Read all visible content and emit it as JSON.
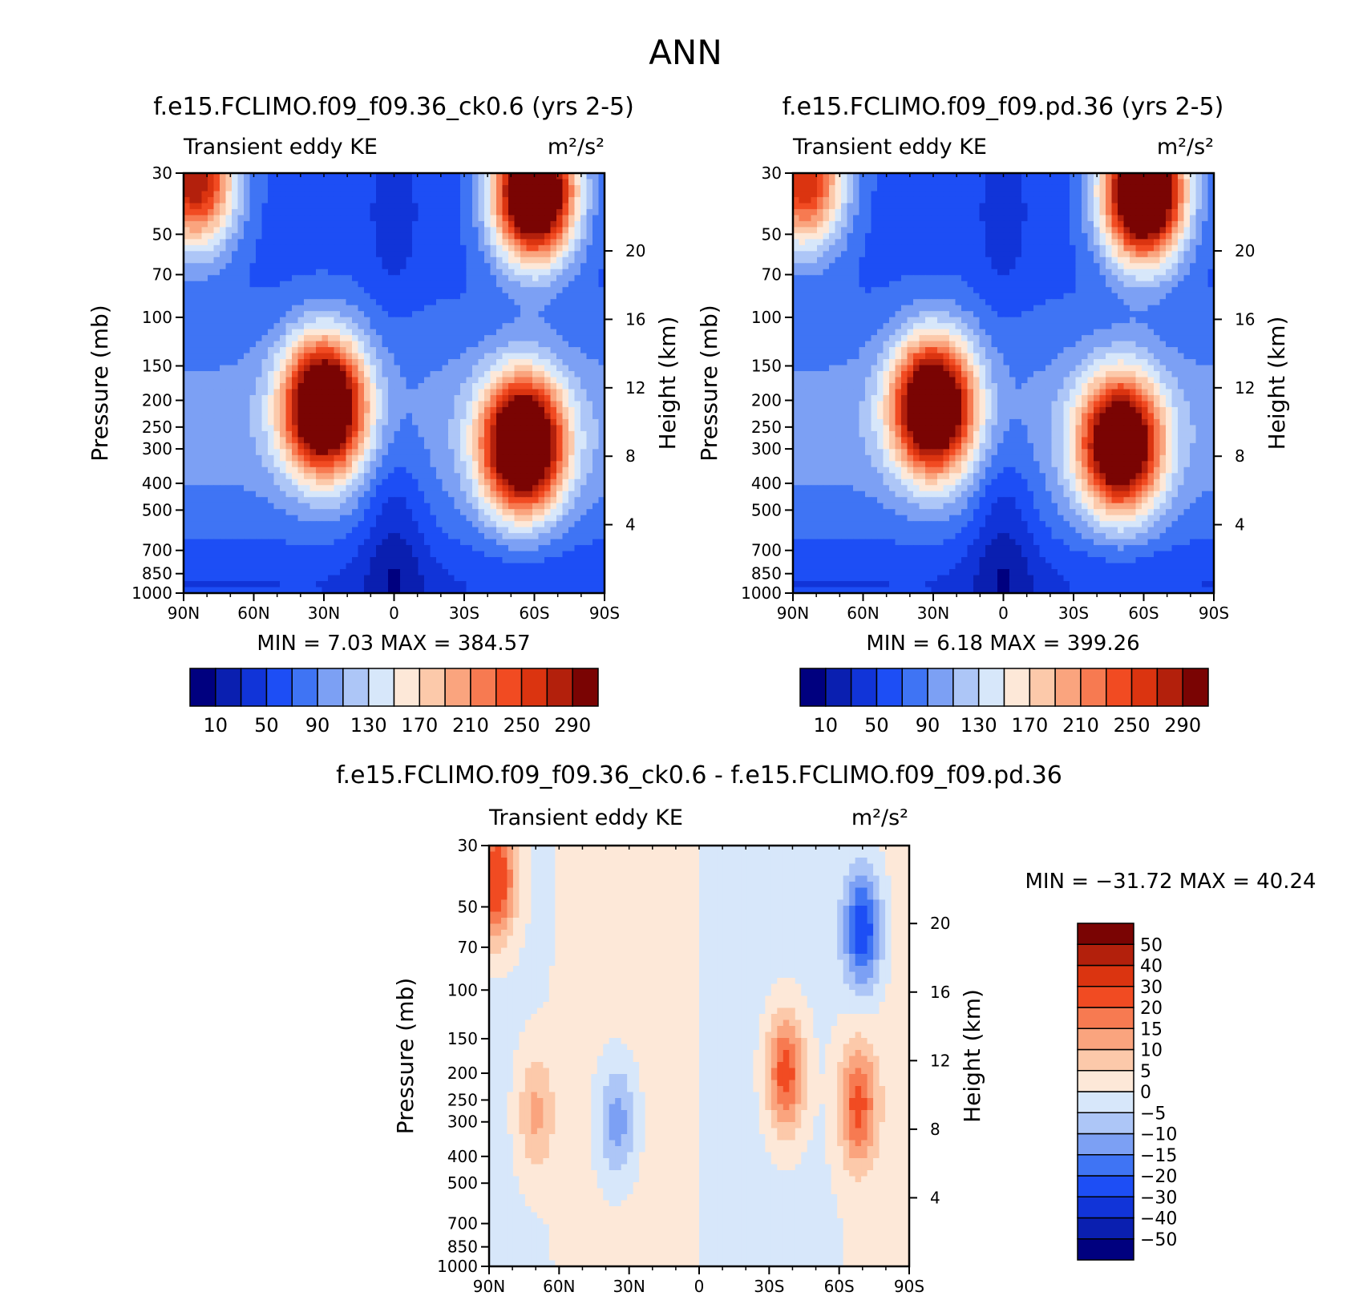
{
  "figure": {
    "title": "ANN"
  },
  "chart_data": [
    {
      "type": "heatmap",
      "title": "f.e15.FCLIMO.f09_f09.36_ck0.6 (yrs 2-5)",
      "subtitle_left": "Transient eddy KE",
      "units": "m²/s²",
      "ylabel": "Pressure (mb)",
      "ylabel_right": "Height (km)",
      "x_ticks": [
        "90N",
        "60N",
        "30N",
        "0",
        "30S",
        "60S",
        "90S"
      ],
      "x_range": [
        90,
        -90
      ],
      "y_ticks": [
        30,
        50,
        70,
        100,
        150,
        200,
        250,
        300,
        400,
        500,
        700,
        850,
        1000
      ],
      "y_range": [
        30,
        1000
      ],
      "y_scale": "log",
      "height_ticks": [
        4,
        8,
        12,
        16,
        20
      ],
      "min_label": "MIN =",
      "min": "7.03",
      "max_label": "MAX =",
      "max": "384.57",
      "colorbar": {
        "levels": [
          10,
          30,
          50,
          70,
          90,
          110,
          130,
          150,
          170,
          190,
          210,
          230,
          250,
          270,
          290
        ],
        "tick_labels": [
          "10",
          "50",
          "90",
          "130",
          "170",
          "210",
          "250",
          "290"
        ],
        "colors": [
          "#00007f",
          "#0a1fb0",
          "#1134d8",
          "#1d4ef5",
          "#3f74f4",
          "#7ca0f4",
          "#adc6f7",
          "#d7e7fa",
          "#fde8d8",
          "#fcc9aa",
          "#faa47e",
          "#f77a51",
          "#f14b22",
          "#db3410",
          "#b3200c",
          "#7a0403"
        ]
      },
      "features": [
        {
          "lat": 30,
          "p": 210,
          "value": 320
        },
        {
          "lat": -55,
          "p": 290,
          "value": 330
        },
        {
          "lat": -60,
          "p": 35,
          "value": 360
        },
        {
          "lat": 85,
          "p": 32,
          "value": 230
        }
      ]
    },
    {
      "type": "heatmap",
      "title": "f.e15.FCLIMO.f09_f09.pd.36 (yrs 2-5)",
      "subtitle_left": "Transient eddy KE",
      "units": "m²/s²",
      "ylabel": "Pressure (mb)",
      "ylabel_right": "Height (km)",
      "x_ticks": [
        "90N",
        "60N",
        "30N",
        "0",
        "30S",
        "60S",
        "90S"
      ],
      "x_range": [
        90,
        -90
      ],
      "y_ticks": [
        30,
        50,
        70,
        100,
        150,
        200,
        250,
        300,
        400,
        500,
        700,
        850,
        1000
      ],
      "y_range": [
        30,
        1000
      ],
      "y_scale": "log",
      "height_ticks": [
        4,
        8,
        12,
        16,
        20
      ],
      "min_label": "MIN =",
      "min": "6.18",
      "max_label": "MAX =",
      "max": "399.26",
      "colorbar": {
        "levels": [
          10,
          30,
          50,
          70,
          90,
          110,
          130,
          150,
          170,
          190,
          210,
          230,
          250,
          270,
          290
        ],
        "tick_labels": [
          "10",
          "50",
          "90",
          "130",
          "170",
          "210",
          "250",
          "290"
        ],
        "colors": [
          "#00007f",
          "#0a1fb0",
          "#1134d8",
          "#1d4ef5",
          "#3f74f4",
          "#7ca0f4",
          "#adc6f7",
          "#d7e7fa",
          "#fde8d8",
          "#fcc9aa",
          "#faa47e",
          "#f77a51",
          "#f14b22",
          "#db3410",
          "#b3200c",
          "#7a0403"
        ]
      },
      "features": [
        {
          "lat": 30,
          "p": 210,
          "value": 310
        },
        {
          "lat": -50,
          "p": 290,
          "value": 300
        },
        {
          "lat": -60,
          "p": 35,
          "value": 370
        },
        {
          "lat": 85,
          "p": 32,
          "value": 210
        }
      ]
    },
    {
      "type": "heatmap",
      "title": "f.e15.FCLIMO.f09_f09.36_ck0.6 - f.e15.FCLIMO.f09_f09.pd.36",
      "subtitle_left": "Transient eddy KE",
      "units": "m²/s²",
      "ylabel": "Pressure (mb)",
      "ylabel_right": "Height (km)",
      "x_ticks": [
        "90N",
        "60N",
        "30N",
        "0",
        "30S",
        "60S",
        "90S"
      ],
      "x_range": [
        90,
        -90
      ],
      "y_ticks": [
        30,
        50,
        70,
        100,
        150,
        200,
        250,
        300,
        400,
        500,
        700,
        850,
        1000
      ],
      "y_range": [
        30,
        1000
      ],
      "y_scale": "log",
      "height_ticks": [
        4,
        8,
        12,
        16,
        20
      ],
      "min_label": "MIN =",
      "min": "-31.72",
      "max_label": "MAX =",
      "max": "40.24",
      "colorbar": {
        "levels": [
          -50,
          -40,
          -30,
          -20,
          -15,
          -10,
          -5,
          0,
          5,
          10,
          15,
          20,
          30,
          40,
          50
        ],
        "tick_labels": [
          "-50",
          "-40",
          "-30",
          "-20",
          "-15",
          "-10",
          "-5",
          "0",
          "5",
          "10",
          "15",
          "20",
          "30",
          "40",
          "50"
        ],
        "colors": [
          "#00007f",
          "#0a1fb0",
          "#1134d8",
          "#1d4ef5",
          "#3f74f4",
          "#7ca0f4",
          "#adc6f7",
          "#d7e7fa",
          "#fde8d8",
          "#fcc9aa",
          "#faa47e",
          "#f77a51",
          "#f14b22",
          "#db3410",
          "#b3200c",
          "#7a0403"
        ]
      },
      "features": [
        {
          "lat": -37,
          "p": 200,
          "value": 25
        },
        {
          "lat": -68,
          "p": 260,
          "value": 22
        },
        {
          "lat": 87,
          "p": 40,
          "value": 30
        },
        {
          "lat": 70,
          "p": 280,
          "value": 12
        },
        {
          "lat": -70,
          "p": 60,
          "value": -25
        },
        {
          "lat": 35,
          "p": 300,
          "value": -14
        }
      ]
    }
  ]
}
